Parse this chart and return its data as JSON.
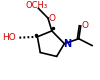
{
  "bg_color": "#ffffff",
  "bond_color": "#000000",
  "atom_colors": {
    "N": "#0000cd",
    "O": "#cc0000",
    "C": "#000000"
  },
  "lw": 1.2,
  "fs": 6.5
}
